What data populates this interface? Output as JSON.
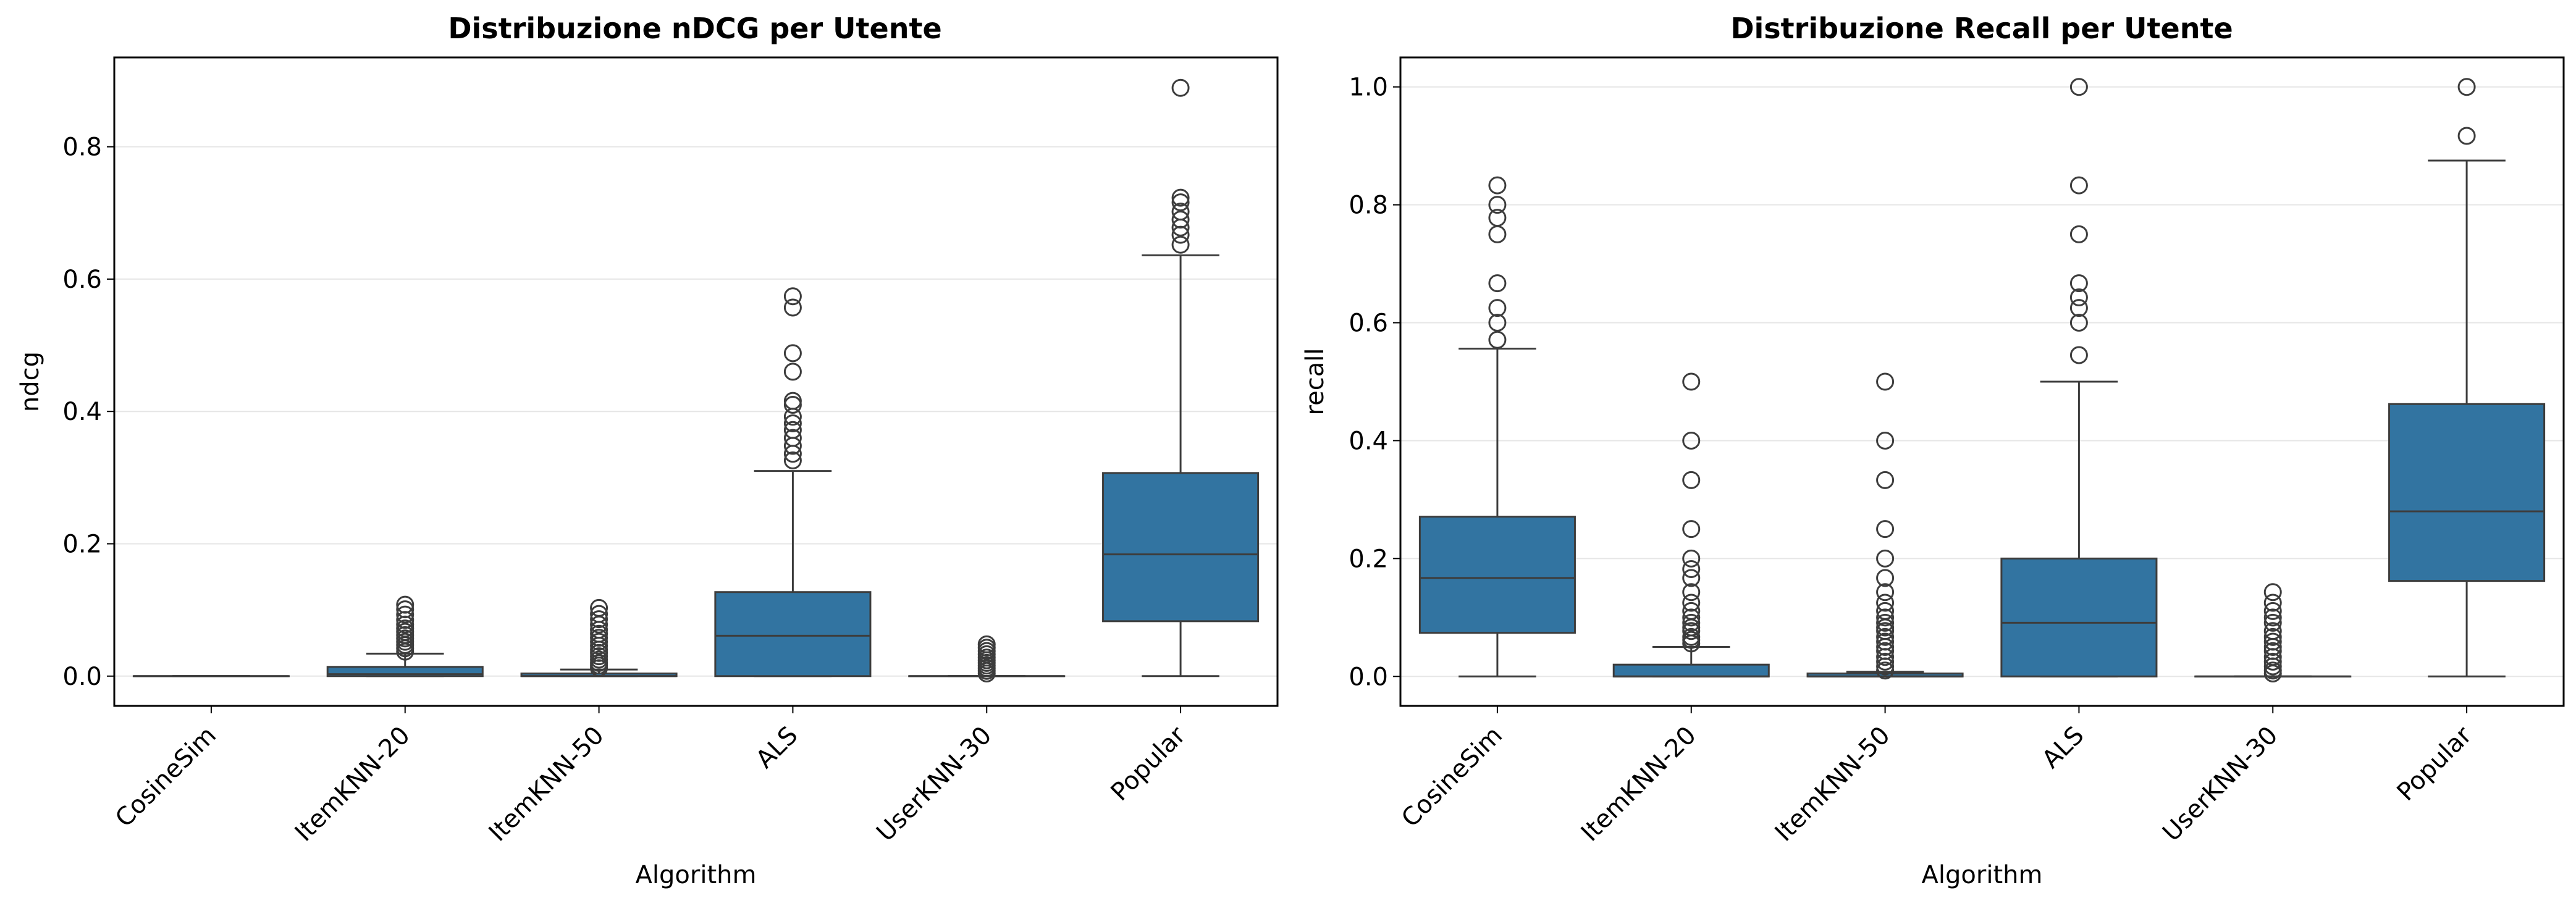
{
  "chart_data": [
    {
      "type": "box",
      "title": "Distribuzione nDCG per Utente",
      "xlabel": "Algorithm",
      "ylabel": "ndcg",
      "ylim": [
        -0.045,
        0.935
      ],
      "yticks": [
        "0.0",
        "0.2",
        "0.4",
        "0.6",
        "0.8"
      ],
      "grid": "y",
      "box_color": "#3274a1",
      "categories": [
        "CosineSim",
        "ItemKNN-20",
        "ItemKNN-50",
        "ALS",
        "UserKNN-30",
        "Popular"
      ],
      "boxes": [
        {
          "whisker_low": 0.0,
          "q1": 0.0,
          "median": 0.0,
          "q3": 0.0,
          "whisker_high": 0.0,
          "outliers": []
        },
        {
          "whisker_low": 0.0,
          "q1": 0.0,
          "median": 0.003,
          "q3": 0.014,
          "whisker_high": 0.034,
          "outliers": [
            0.037,
            0.042,
            0.047,
            0.052,
            0.057,
            0.062,
            0.067,
            0.072,
            0.078,
            0.085,
            0.093,
            0.101,
            0.108
          ]
        },
        {
          "whisker_low": 0.0,
          "q1": 0.0,
          "median": 0.0,
          "q3": 0.004,
          "whisker_high": 0.01,
          "outliers": [
            0.012,
            0.016,
            0.02,
            0.025,
            0.03,
            0.035,
            0.04,
            0.046,
            0.052,
            0.058,
            0.064,
            0.07,
            0.078,
            0.086,
            0.094,
            0.103
          ]
        },
        {
          "whisker_low": 0.0,
          "q1": 0.0,
          "median": 0.061,
          "q3": 0.127,
          "whisker_high": 0.31,
          "outliers": [
            0.326,
            0.336,
            0.348,
            0.36,
            0.372,
            0.382,
            0.392,
            0.41,
            0.416,
            0.46,
            0.488,
            0.557,
            0.574
          ]
        },
        {
          "whisker_low": 0.0,
          "q1": 0.0,
          "median": 0.0,
          "q3": 0.0,
          "whisker_high": 0.0,
          "outliers": [
            0.004,
            0.008,
            0.012,
            0.016,
            0.02,
            0.024,
            0.028,
            0.033,
            0.038,
            0.043,
            0.048
          ]
        },
        {
          "whisker_low": 0.0,
          "q1": 0.083,
          "median": 0.184,
          "q3": 0.307,
          "whisker_high": 0.636,
          "outliers": [
            0.652,
            0.667,
            0.678,
            0.69,
            0.702,
            0.716,
            0.723,
            0.889
          ]
        }
      ]
    },
    {
      "type": "box",
      "title": "Distribuzione Recall per Utente",
      "xlabel": "Algorithm",
      "ylabel": "recall",
      "ylim": [
        -0.05,
        1.05
      ],
      "yticks": [
        "0.0",
        "0.2",
        "0.4",
        "0.6",
        "0.8",
        "1.0"
      ],
      "grid": "y",
      "box_color": "#3274a1",
      "categories": [
        "CosineSim",
        "ItemKNN-20",
        "ItemKNN-50",
        "ALS",
        "UserKNN-30",
        "Popular"
      ],
      "boxes": [
        {
          "whisker_low": 0.0,
          "q1": 0.074,
          "median": 0.167,
          "q3": 0.271,
          "whisker_high": 0.556,
          "outliers": [
            0.571,
            0.6,
            0.625,
            0.667,
            0.75,
            0.778,
            0.8,
            0.833
          ]
        },
        {
          "whisker_low": 0.0,
          "q1": 0.0,
          "median": 0.0,
          "q3": 0.02,
          "whisker_high": 0.05,
          "outliers": [
            0.056,
            0.062,
            0.067,
            0.077,
            0.083,
            0.091,
            0.1,
            0.111,
            0.125,
            0.143,
            0.167,
            0.182,
            0.2,
            0.25,
            0.333,
            0.4,
            0.5
          ]
        },
        {
          "whisker_low": 0.0,
          "q1": 0.0,
          "median": 0.0,
          "q3": 0.005,
          "whisker_high": 0.008,
          "outliers": [
            0.01,
            0.017,
            0.025,
            0.033,
            0.043,
            0.05,
            0.059,
            0.067,
            0.077,
            0.083,
            0.091,
            0.1,
            0.111,
            0.125,
            0.143,
            0.167,
            0.2,
            0.25,
            0.333,
            0.4,
            0.5
          ]
        },
        {
          "whisker_low": 0.0,
          "q1": 0.0,
          "median": 0.091,
          "q3": 0.2,
          "whisker_high": 0.5,
          "outliers": [
            0.545,
            0.6,
            0.625,
            0.643,
            0.667,
            0.75,
            0.833,
            1.0
          ]
        },
        {
          "whisker_low": 0.0,
          "q1": 0.0,
          "median": 0.0,
          "q3": 0.0,
          "whisker_high": 0.0,
          "outliers": [
            0.005,
            0.01,
            0.017,
            0.025,
            0.033,
            0.043,
            0.05,
            0.059,
            0.067,
            0.077,
            0.091,
            0.1,
            0.111,
            0.125,
            0.143
          ]
        },
        {
          "whisker_low": 0.0,
          "q1": 0.162,
          "median": 0.28,
          "q3": 0.462,
          "whisker_high": 0.875,
          "outliers": [
            0.917,
            1.0
          ]
        }
      ]
    }
  ]
}
